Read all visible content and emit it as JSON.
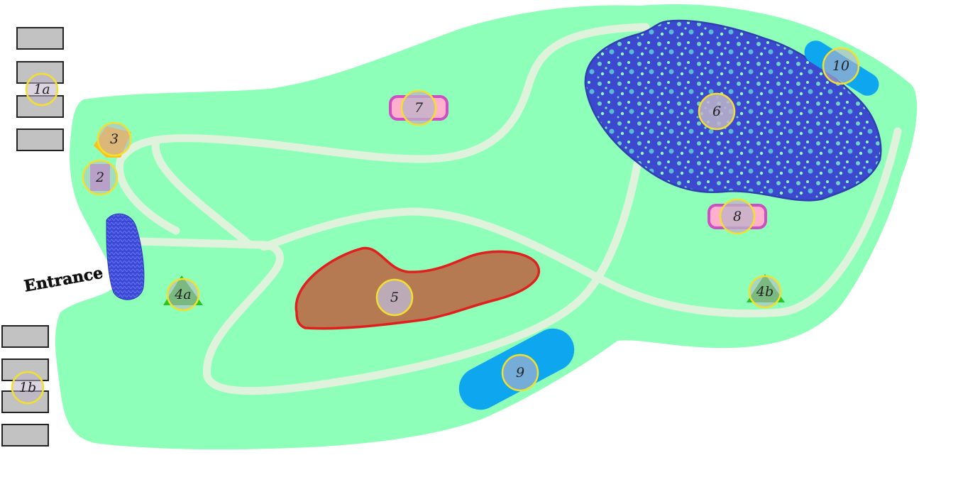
{
  "map": {
    "entrance_label": "Entrance",
    "colors": {
      "grass": "#8effb8",
      "path": "#dff3dc",
      "pond_water": "#3c49cf",
      "pond_outline": "#2e3fb0",
      "dirt_area": "#b57a52",
      "dirt_outline": "#e0201e",
      "blue_pad": "#0ea6ee",
      "pink_pad": "#cd4fc2",
      "marker_ring": "#f2e030",
      "marker_fill": "#bdb3c9",
      "cone": "#28c428",
      "gate": "#3c49d6",
      "block": "#c2c2c2",
      "orange_sign": "#ffbf1a"
    },
    "markers": [
      {
        "id": "1a",
        "label": "1a"
      },
      {
        "id": "1b",
        "label": "1b"
      },
      {
        "id": "2",
        "label": "2"
      },
      {
        "id": "3",
        "label": "3"
      },
      {
        "id": "4a",
        "label": "4a"
      },
      {
        "id": "4b",
        "label": "4b"
      },
      {
        "id": "5",
        "label": "5"
      },
      {
        "id": "6",
        "label": "6"
      },
      {
        "id": "7",
        "label": "7"
      },
      {
        "id": "8",
        "label": "8"
      },
      {
        "id": "9",
        "label": "9"
      },
      {
        "id": "10",
        "label": "10"
      }
    ]
  }
}
